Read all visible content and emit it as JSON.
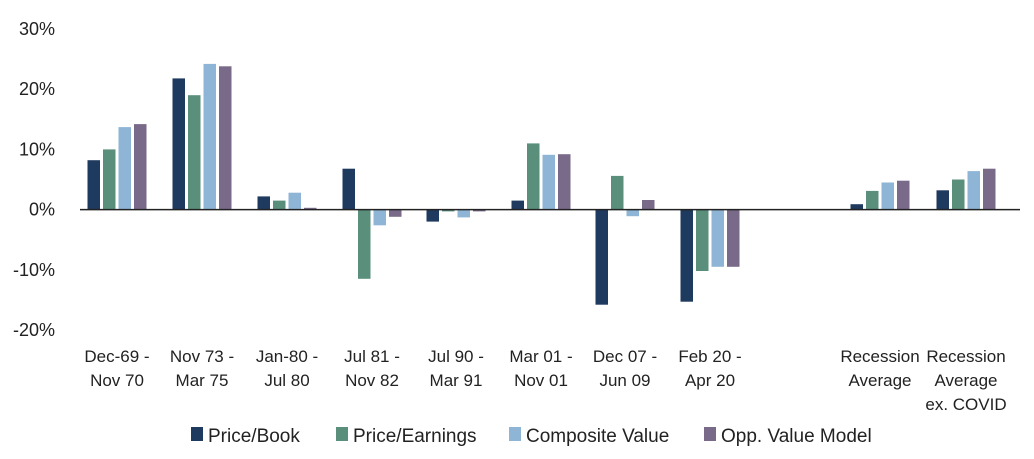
{
  "chart_data": {
    "type": "bar",
    "title": "",
    "xlabel": "",
    "ylabel": "",
    "ylim": [
      -20,
      30
    ],
    "y_ticks": [
      "30%",
      "20%",
      "10%",
      "0%",
      "-10%",
      "-20%"
    ],
    "y_tick_values": [
      30,
      20,
      10,
      0,
      -10,
      -20
    ],
    "grid": false,
    "legend_position": "bottom",
    "categories": [
      [
        "Dec-69 -",
        "Nov 70"
      ],
      [
        "Nov 73 -",
        "Mar 75"
      ],
      [
        "Jan-80 -",
        "Jul 80"
      ],
      [
        "Jul 81 -",
        "Nov 82"
      ],
      [
        "Jul 90 -",
        "Mar 91"
      ],
      [
        "Mar 01 -",
        "Nov 01"
      ],
      [
        "Dec 07 -",
        "Jun 09"
      ],
      [
        "Feb 20 -",
        "Apr 20"
      ],
      [],
      [
        "Recession",
        "Average"
      ],
      [
        "Recession",
        "Average",
        "ex. COVID"
      ]
    ],
    "series": [
      {
        "name": "Price/Book",
        "color": "#1f3a5f",
        "values": [
          8.2,
          21.8,
          2.2,
          6.8,
          -2.0,
          1.5,
          -15.8,
          -15.3,
          null,
          0.9,
          3.2
        ]
      },
      {
        "name": "Price/Earnings",
        "color": "#5a8f7b",
        "values": [
          10.0,
          19.0,
          1.5,
          -11.5,
          -0.3,
          11.0,
          5.6,
          -10.2,
          null,
          3.1,
          5.0
        ]
      },
      {
        "name": "Composite Value",
        "color": "#8fb5d6",
        "values": [
          13.7,
          24.2,
          2.8,
          -2.6,
          -1.3,
          9.1,
          -1.1,
          -9.5,
          null,
          4.5,
          6.4
        ]
      },
      {
        "name": "Opp. Value Model",
        "color": "#7a6a8a",
        "values": [
          14.2,
          23.8,
          0.3,
          -1.2,
          -0.3,
          9.2,
          1.6,
          -9.5,
          null,
          4.8,
          6.8
        ]
      }
    ]
  }
}
